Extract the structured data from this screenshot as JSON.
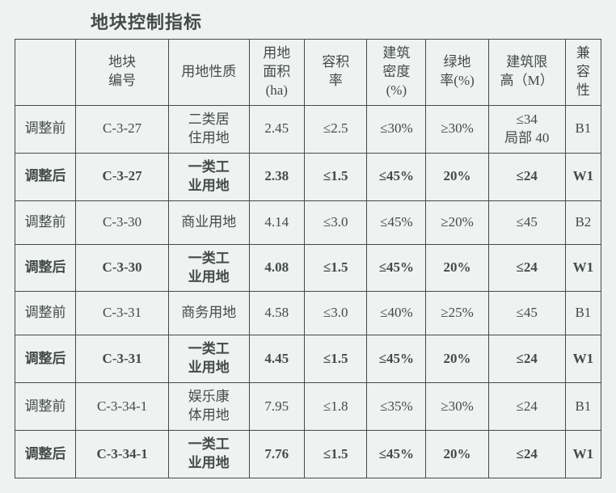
{
  "title": "地块控制指标",
  "columns": {
    "label": "",
    "plot_no": "地块\n编号",
    "landuse": "用地性质",
    "area": "用地\n面积\n(ha)",
    "far": "容积\n率",
    "density": "建筑\n密度\n(%)",
    "green": "绿地\n率(%)",
    "height": "建筑限\n高（M）",
    "compat": "兼\n容\n性"
  },
  "rows": [
    {
      "bold": false,
      "label": "调整前",
      "plot_no": "C-3-27",
      "landuse": "二类居\n住用地",
      "area": "2.45",
      "far": "≤2.5",
      "density": "≤30%",
      "green": "≥30%",
      "height": "≤34\n局部 40",
      "compat": "B1"
    },
    {
      "bold": true,
      "label": "调整后",
      "plot_no": "C-3-27",
      "landuse": "一类工\n业用地",
      "area": "2.38",
      "far": "≤1.5",
      "density": "≤45%",
      "green": "20%",
      "height": "≤24",
      "compat": "W1"
    },
    {
      "bold": false,
      "label": "调整前",
      "plot_no": "C-3-30",
      "landuse": "商业用地",
      "area": "4.14",
      "far": "≤3.0",
      "density": "≤45%",
      "green": "≥20%",
      "height": "≤45",
      "compat": "B2"
    },
    {
      "bold": true,
      "label": "调整后",
      "plot_no": "C-3-30",
      "landuse": "一类工\n业用地",
      "area": "4.08",
      "far": "≤1.5",
      "density": "≤45%",
      "green": "20%",
      "height": "≤24",
      "compat": "W1"
    },
    {
      "bold": false,
      "label": "调整前",
      "plot_no": "C-3-31",
      "landuse": "商务用地",
      "area": "4.58",
      "far": "≤3.0",
      "density": "≤40%",
      "green": "≥25%",
      "height": "≤45",
      "compat": "B1"
    },
    {
      "bold": true,
      "label": "调整后",
      "plot_no": "C-3-31",
      "landuse": "一类工\n业用地",
      "area": "4.45",
      "far": "≤1.5",
      "density": "≤45%",
      "green": "20%",
      "height": "≤24",
      "compat": "W1"
    },
    {
      "bold": false,
      "label": "调整前",
      "plot_no": "C-3-34-1",
      "landuse": "娱乐康\n体用地",
      "area": "7.95",
      "far": "≤1.8",
      "density": "≤35%",
      "green": "≥30%",
      "height": "≤24",
      "compat": "B1"
    },
    {
      "bold": true,
      "label": "调整后",
      "plot_no": "C-3-34-1",
      "landuse": "一类工\n业用地",
      "area": "7.76",
      "far": "≤1.5",
      "density": "≤45%",
      "green": "20%",
      "height": "≤24",
      "compat": "W1"
    }
  ],
  "colors": {
    "background": "#eef2f1",
    "border": "#454a49",
    "text": "#444b4a"
  }
}
